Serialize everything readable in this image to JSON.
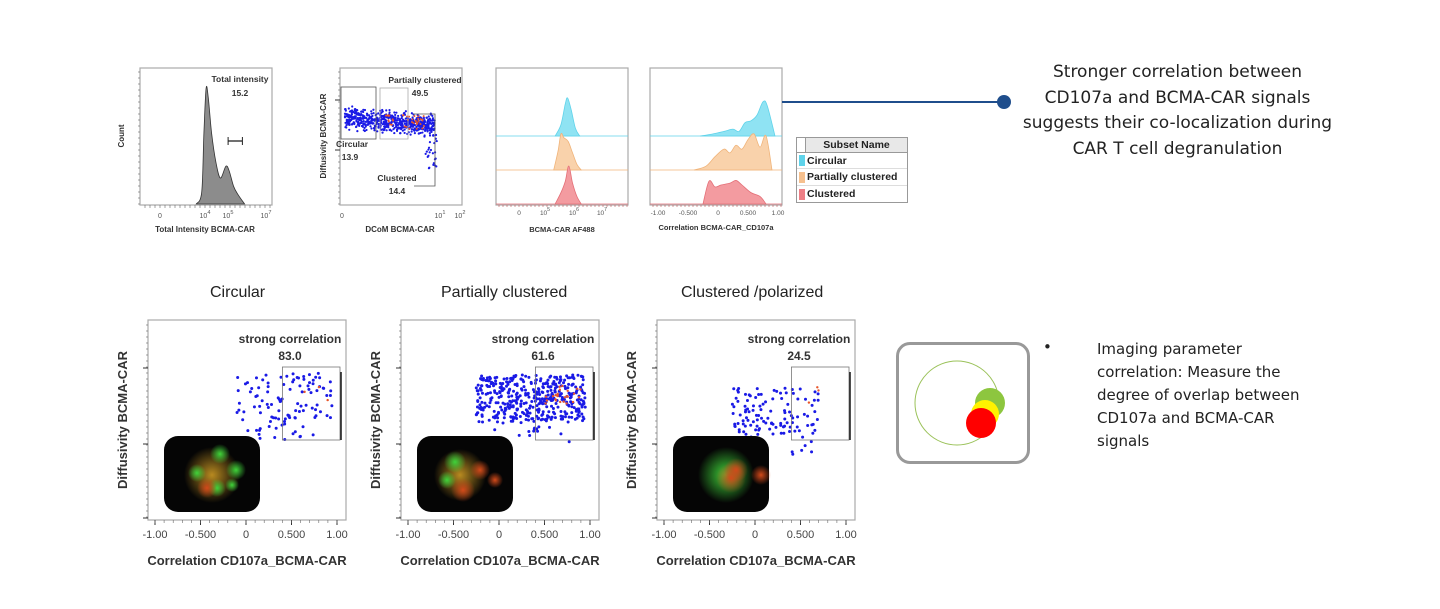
{
  "side_note": {
    "lines": [
      "Stronger correlation between",
      "CD107a and BCMA-CAR signals",
      "suggests their co-localization during",
      "CAR T cell degranulation"
    ]
  },
  "legend": {
    "header": "Subset Name",
    "items": [
      {
        "label": "Circular",
        "color": "#5fd3ea"
      },
      {
        "label": "Partially clustered",
        "color": "#f6c08e"
      },
      {
        "label": "Clustered",
        "color": "#ee7f86"
      }
    ]
  },
  "bottom_titles": [
    "Circular",
    "Partially clustered",
    "Clustered /polarized"
  ],
  "bullet": {
    "symbol": "•",
    "lines": [
      "Imaging parameter",
      "correlation: Measure the",
      "degree of overlap between",
      "CD107a and BCMA-CAR",
      "signals"
    ]
  },
  "schematic_colors": {
    "outline": "#9bc25a",
    "green": "#8dc63f",
    "yellow": "#fff200",
    "red": "#ff0000"
  },
  "chart_data": [
    {
      "type": "area",
      "xlabel": "Total Intensity BCMA-CAR",
      "ylabel": "Count",
      "xscale": "log",
      "xticks": [
        "0",
        "10^4",
        "10^5",
        "10^7"
      ],
      "series": [
        {
          "x_log10": [
            3.6,
            3.85,
            3.95,
            4.05,
            4.15,
            4.3,
            4.5,
            4.7,
            4.95,
            5.1,
            5.3,
            5.5,
            5.8
          ],
          "relative_count": [
            0,
            0.1,
            0.6,
            0.98,
            0.9,
            0.6,
            0.35,
            0.22,
            0.32,
            0.28,
            0.15,
            0.08,
            0
          ]
        }
      ],
      "gate": {
        "name": "Total intensity",
        "value": "15.2",
        "range_log10": [
          5.05,
          5.7
        ]
      },
      "fill": "#8c8c8c"
    },
    {
      "type": "scatter",
      "xlabel": "DCoM BCMA-CAR",
      "ylabel": "Diffusivity BCMA-CAR",
      "xticks": [
        "0",
        "10^1",
        "10^2"
      ],
      "gates": [
        {
          "name": "Circular",
          "value": "13.9"
        },
        {
          "name": "Partially clustered",
          "value": "49.5"
        },
        {
          "name": "Clustered",
          "value": "14.4"
        }
      ]
    },
    {
      "type": "area",
      "xlabel": "BCMA-CAR AF488",
      "xscale": "log",
      "xticks": [
        "0",
        "10^5",
        "10^6",
        "10^7"
      ],
      "series": [
        {
          "name": "Circular",
          "x_log10": [
            5.35,
            5.55,
            5.7,
            5.78,
            5.9,
            6.05,
            6.2
          ],
          "relative_count": [
            0,
            0.3,
            0.85,
            1.0,
            0.7,
            0.2,
            0
          ]
        },
        {
          "name": "Partially clustered",
          "x_log10": [
            5.3,
            5.45,
            5.55,
            5.65,
            5.8,
            5.95,
            6.1,
            6.25
          ],
          "relative_count": [
            0,
            0.5,
            0.95,
            0.85,
            0.75,
            0.45,
            0.15,
            0
          ]
        },
        {
          "name": "Clustered",
          "x_log10": [
            5.35,
            5.55,
            5.7,
            5.82,
            5.95,
            6.1,
            6.25
          ],
          "relative_count": [
            0,
            0.3,
            0.6,
            1.0,
            0.55,
            0.2,
            0
          ]
        }
      ]
    },
    {
      "type": "area",
      "xlabel": "Correlation BCMA-CAR_CD107a",
      "xticks": [
        "-1.00",
        "-0.500",
        "0",
        "0.500",
        "1.00"
      ],
      "xlim": [
        -1,
        1
      ],
      "series": [
        {
          "name": "Circular",
          "x": [
            -0.3,
            -0.1,
            0.1,
            0.25,
            0.35,
            0.45,
            0.55,
            0.65,
            0.75,
            0.82,
            0.95
          ],
          "relative_count": [
            0,
            0.05,
            0.12,
            0.18,
            0.12,
            0.35,
            0.4,
            0.55,
            0.9,
            0.8,
            0
          ]
        },
        {
          "name": "Partially clustered",
          "x": [
            -0.4,
            -0.2,
            -0.05,
            0.1,
            0.2,
            0.3,
            0.4,
            0.5,
            0.6,
            0.7,
            0.8,
            0.9
          ],
          "relative_count": [
            0,
            0.1,
            0.35,
            0.55,
            0.45,
            0.65,
            0.55,
            0.8,
            0.95,
            0.6,
            0.9,
            0
          ]
        },
        {
          "name": "Clustered",
          "x": [
            -0.25,
            -0.15,
            -0.05,
            0.05,
            0.2,
            0.3,
            0.4,
            0.55,
            0.7,
            0.8
          ],
          "relative_count": [
            0,
            0.6,
            0.45,
            0.5,
            0.55,
            0.62,
            0.5,
            0.3,
            0.2,
            0
          ]
        }
      ]
    },
    {
      "type": "scatter",
      "title": "Circular",
      "xlabel": "Correlation CD107a_BCMA-CAR",
      "ylabel": "Diffusivity BCMA-CAR",
      "xticks": [
        "-1.00",
        "-0.500",
        "0",
        "0.500",
        "1.00"
      ],
      "xlim": [
        -1,
        1
      ],
      "gate": {
        "name": "strong correlation",
        "value": "83.0",
        "x_from": 0.4
      }
    },
    {
      "type": "scatter",
      "title": "Partially clustered",
      "xlabel": "Correlation CD107a_BCMA-CAR",
      "ylabel": "Diffusivity BCMA-CAR",
      "xticks": [
        "-1.00",
        "-0.500",
        "0",
        "0.500",
        "1.00"
      ],
      "xlim": [
        -1,
        1
      ],
      "gate": {
        "name": "strong correlation",
        "value": "61.6",
        "x_from": 0.4
      }
    },
    {
      "type": "scatter",
      "title": "Clustered /polarized",
      "xlabel": "Correlation CD107a_BCMA-CAR",
      "ylabel": "Diffusivity BCMA-CAR",
      "xticks": [
        "-1.00",
        "-0.500",
        "0",
        "0.500",
        "1.00"
      ],
      "xlim": [
        -1,
        1
      ],
      "gate": {
        "name": "strong correlation",
        "value": "24.5",
        "x_from": 0.4
      }
    }
  ]
}
